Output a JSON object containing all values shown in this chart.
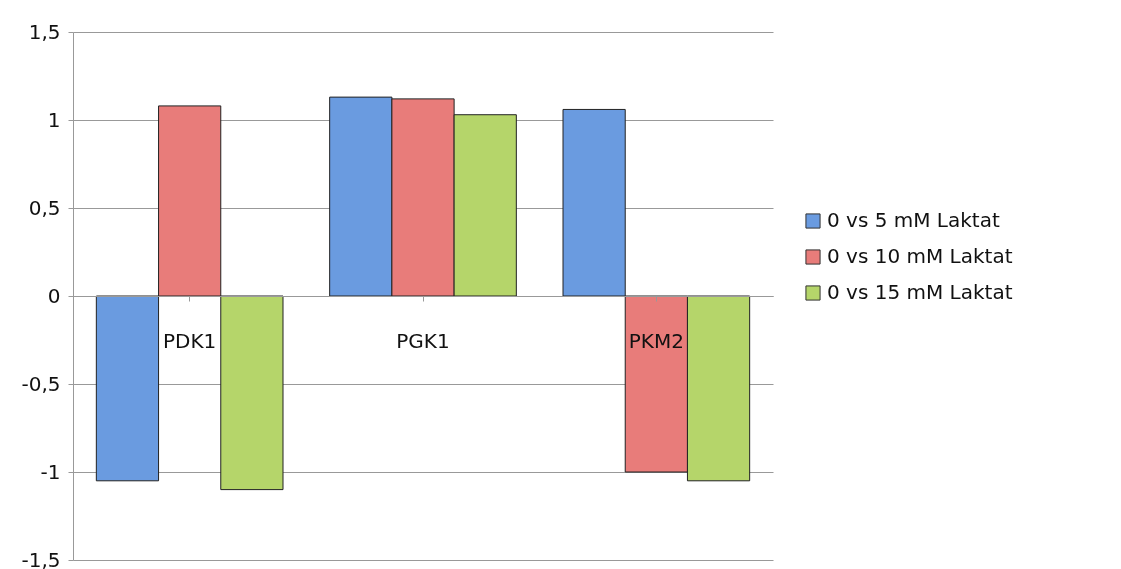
{
  "chart_data": {
    "type": "bar",
    "categories": [
      "PDK1",
      "PGK1",
      "PKM2"
    ],
    "series": [
      {
        "name": "0 vs 5 mM Laktat",
        "color": "#6a9be0",
        "values": [
          -1.05,
          1.13,
          1.06
        ]
      },
      {
        "name": "0 vs 10 mM Laktat",
        "color": "#e87c7a",
        "values": [
          1.08,
          1.12,
          -1.0
        ]
      },
      {
        "name": "0 vs 15 mM Laktat",
        "color": "#b5d56a",
        "values": [
          -1.1,
          1.03,
          -1.05
        ]
      }
    ],
    "ylim": [
      -1.5,
      1.5
    ],
    "yticks": [
      {
        "value": -1.5,
        "label": "-1,5"
      },
      {
        "value": -1,
        "label": "-1"
      },
      {
        "value": -0.5,
        "label": "-0,5"
      },
      {
        "value": 0,
        "label": "0"
      },
      {
        "value": 0.5,
        "label": "0,5"
      },
      {
        "value": 1,
        "label": "1"
      },
      {
        "value": 1.5,
        "label": "1,5"
      }
    ],
    "grid": "y",
    "legend": "right"
  }
}
